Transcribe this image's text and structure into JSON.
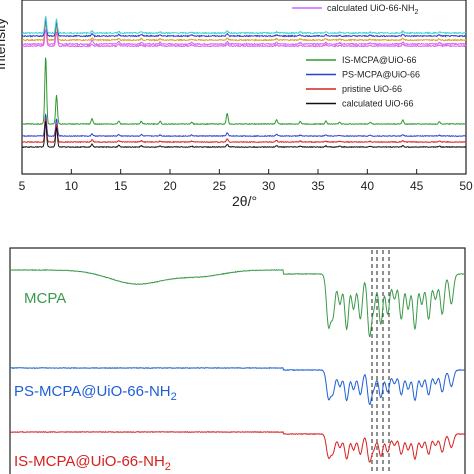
{
  "chart_data": [
    {
      "type": "line",
      "title": "",
      "xlabel": "2θ/°",
      "ylabel": "Intensity",
      "xlim": [
        5,
        50
      ],
      "xticks": [
        5,
        10,
        15,
        20,
        25,
        30,
        35,
        40,
        45,
        50
      ],
      "ytick_labels": false,
      "legend_top": [
        {
          "name": "calculated UiO-66-NH",
          "sub": "2",
          "color": "#cc66ff"
        }
      ],
      "legend_bottom": [
        {
          "name": "IS-MCPA@UiO-66",
          "color": "#2e9a2e"
        },
        {
          "name": "PS-MCPA@UiO-66",
          "color": "#2a3fd6"
        },
        {
          "name": "pristine UiO-66",
          "color": "#d62020"
        },
        {
          "name": "calculated UiO-66",
          "color": "#111111"
        }
      ],
      "peaks_2theta": [
        7.4,
        8.5,
        12.1,
        14.8,
        17.1,
        19.0,
        22.2,
        25.8,
        30.8,
        33.2,
        35.8,
        37.2,
        40.3,
        43.6,
        47.3
      ],
      "series": [
        {
          "name": "calculated UiO-66-NH2",
          "color": "#cc66ff",
          "group": "top",
          "peak_heights": [
            2.0,
            1.6,
            0.3,
            0.2,
            0.15,
            0.12,
            0.1,
            0.2,
            0.1,
            0.1,
            0.12,
            0.08,
            0.08,
            0.15,
            0.1
          ]
        },
        {
          "name": "",
          "color": "#e0a020",
          "group": "top",
          "peak_heights": [
            1.2,
            1.0,
            0.15,
            0.12,
            0.1,
            0.1,
            0.08,
            0.15,
            0.08,
            0.08,
            0.1,
            0.06,
            0.06,
            0.12,
            0.08
          ]
        },
        {
          "name": "",
          "color": "#2a3fd6",
          "group": "top",
          "peak_heights": [
            1.2,
            1.0,
            0.15,
            0.12,
            0.1,
            0.1,
            0.08,
            0.15,
            0.08,
            0.08,
            0.1,
            0.06,
            0.06,
            0.12,
            0.08
          ]
        },
        {
          "name": "",
          "color": "#40d0d0",
          "group": "top",
          "peak_heights": [
            1.2,
            1.0,
            0.15,
            0.12,
            0.1,
            0.1,
            0.08,
            0.15,
            0.08,
            0.08,
            0.1,
            0.06,
            0.06,
            0.12,
            0.08
          ]
        },
        {
          "name": "",
          "color": "#e060e0",
          "group": "top",
          "peak_heights": [
            1.2,
            1.0,
            0.15,
            0.12,
            0.1,
            0.1,
            0.08,
            0.15,
            0.08,
            0.08,
            0.1,
            0.06,
            0.06,
            0.12,
            0.08
          ]
        },
        {
          "name": "IS-MCPA@UiO-66",
          "color": "#2e9a2e",
          "group": "bottom",
          "peak_heights": [
            7.5,
            3.2,
            0.6,
            0.35,
            0.3,
            0.3,
            0.2,
            1.2,
            0.5,
            0.3,
            0.35,
            0.2,
            0.2,
            0.45,
            0.25
          ]
        },
        {
          "name": "PS-MCPA@UiO-66",
          "color": "#2a3fd6",
          "group": "bottom",
          "peak_heights": [
            2.4,
            1.9,
            0.25,
            0.15,
            0.15,
            0.12,
            0.1,
            0.35,
            0.2,
            0.1,
            0.12,
            0.08,
            0.08,
            0.15,
            0.1
          ]
        },
        {
          "name": "pristine UiO-66",
          "color": "#d62020",
          "group": "bottom",
          "peak_heights": [
            2.6,
            2.0,
            0.25,
            0.15,
            0.15,
            0.12,
            0.1,
            0.35,
            0.2,
            0.1,
            0.12,
            0.08,
            0.08,
            0.15,
            0.1
          ]
        },
        {
          "name": "calculated UiO-66",
          "color": "#111111",
          "group": "bottom",
          "peak_heights": [
            2.8,
            2.2,
            0.3,
            0.2,
            0.15,
            0.12,
            0.1,
            0.3,
            0.15,
            0.1,
            0.12,
            0.08,
            0.08,
            0.15,
            0.1
          ]
        }
      ]
    },
    {
      "type": "line",
      "title": "",
      "xlabel": "",
      "ylabel": "",
      "labels": [
        {
          "text": "MCPA",
          "color": "#3a9a4a"
        },
        {
          "text": "PS-MCPA@UiO-66-NH",
          "sub": "2",
          "color": "#1e5fd6"
        },
        {
          "text": "IS-MCPA@UiO-66-NH",
          "sub": "2",
          "color": "#d62020"
        }
      ],
      "dashed_reference_lines": 4,
      "series": [
        {
          "name": "MCPA",
          "color": "#3a9a4a"
        },
        {
          "name": "PS-MCPA@UiO-66-NH2",
          "color": "#1e5fd6"
        },
        {
          "name": "IS-MCPA@UiO-66-NH2",
          "color": "#d62020"
        }
      ]
    }
  ]
}
